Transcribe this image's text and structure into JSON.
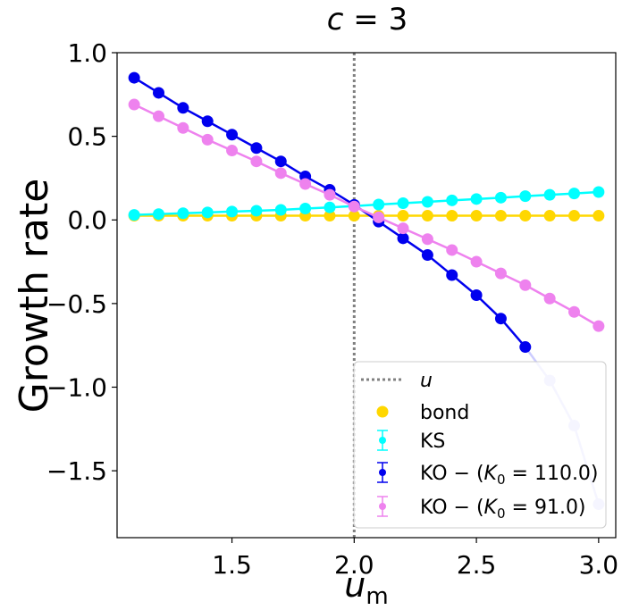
{
  "chart_data": {
    "type": "line",
    "title_var": "c",
    "title_eq": " = 3",
    "xlabel_main": "u",
    "xlabel_sub": "m",
    "ylabel": "Growth rate",
    "xlim": [
      1.03,
      3.07
    ],
    "ylim": [
      -1.9,
      1.0
    ],
    "xticks": [
      1.5,
      2.0,
      2.5,
      3.0
    ],
    "xtick_labels": [
      "1.5",
      "2.0",
      "2.5",
      "3.0"
    ],
    "yticks": [
      1.0,
      0.5,
      0.0,
      -0.5,
      -1.0,
      -1.5
    ],
    "ytick_labels": [
      "1.0",
      "0.5",
      "0.0",
      "−0.5",
      "−1.0",
      "−1.5"
    ],
    "vline": {
      "x": 2.0,
      "color": "#808080",
      "label": "u"
    },
    "x": [
      1.1,
      1.2,
      1.3,
      1.4,
      1.5,
      1.6,
      1.7,
      1.8,
      1.9,
      2.0,
      2.1,
      2.2,
      2.3,
      2.4,
      2.5,
      2.6,
      2.7,
      2.8,
      2.9,
      3.0
    ],
    "series": [
      {
        "name": "bond",
        "color": "#FFD700",
        "values": [
          0.025,
          0.025,
          0.025,
          0.025,
          0.025,
          0.025,
          0.025,
          0.025,
          0.025,
          0.025,
          0.025,
          0.025,
          0.025,
          0.025,
          0.025,
          0.025,
          0.025,
          0.025,
          0.025,
          0.025
        ]
      },
      {
        "name": "KS",
        "color": "#00FFFF",
        "values": [
          0.03,
          0.035,
          0.04,
          0.045,
          0.05,
          0.055,
          0.06,
          0.068,
          0.075,
          0.083,
          0.092,
          0.1,
          0.108,
          0.117,
          0.125,
          0.133,
          0.142,
          0.15,
          0.158,
          0.167
        ]
      },
      {
        "name": "KO",
        "color": "#0000EE",
        "faded_color": "#CCCCFF",
        "faded_from_index": 17,
        "values": [
          0.85,
          0.76,
          0.67,
          0.59,
          0.51,
          0.43,
          0.35,
          0.26,
          0.18,
          0.09,
          -0.01,
          -0.11,
          -0.21,
          -0.33,
          -0.45,
          -0.59,
          -0.76,
          -0.96,
          -1.23,
          -1.7
        ]
      },
      {
        "name": "KO91",
        "color": "#EE82EE",
        "values": [
          0.69,
          0.62,
          0.55,
          0.48,
          0.415,
          0.35,
          0.28,
          0.215,
          0.15,
          0.08,
          0.015,
          -0.05,
          -0.115,
          -0.18,
          -0.25,
          -0.32,
          -0.39,
          -0.47,
          -0.55,
          -0.635
        ]
      }
    ],
    "legend": {
      "position": "lower right",
      "entries": [
        {
          "label": "u",
          "kind": "vline",
          "color": "#808080"
        },
        {
          "label": "bond",
          "kind": "dot",
          "color": "#FFD700"
        },
        {
          "label": "KS",
          "kind": "errorbar",
          "color": "#00FFFF"
        },
        {
          "label_pre": "KO − (",
          "label_var": "K",
          "label_sub": "0",
          "label_post": " = 110.0)",
          "kind": "errorbar",
          "color": "#0000EE"
        },
        {
          "label_pre": "KO − (",
          "label_var": "K",
          "label_sub": "0",
          "label_post": " = 91.0)",
          "kind": "errorbar",
          "color": "#EE82EE"
        }
      ]
    }
  }
}
